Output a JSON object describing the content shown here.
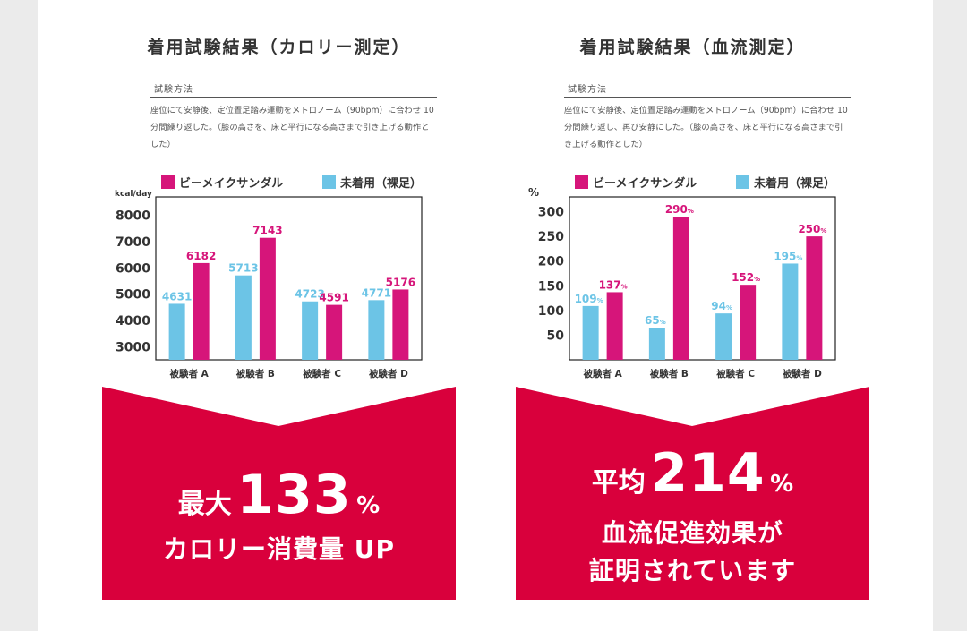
{
  "colors": {
    "magenta": "#d6157a",
    "cyan": "#6cc4e6",
    "banner_red": "#d9003c"
  },
  "left": {
    "heading": "着用試験結果（カロリー測定）",
    "method_label": "試験方法",
    "method_text": "座位にて安静後、定位置足踏み運動をメトロノーム（90bpm）に合わせ 10 分間繰り返した。（膝の高さを、床と平行になる高さまで引き上げる動作とした）",
    "banner": {
      "prefix": "最大",
      "number": "133",
      "unit": "%",
      "line2": "カロリー消費量 UP"
    }
  },
  "right": {
    "heading": "着用試験結果（血流測定）",
    "method_label": "試験方法",
    "method_text": "座位にて安静後、定位置足踏み運動をメトロノーム（90bpm）に合わせ 10 分間繰り返し、再び安静にした。（膝の高さを、床と平行になる高さまで引き上げる動作とした）",
    "banner": {
      "prefix": "平均",
      "number": "214",
      "unit": "%",
      "line2": "血流促進効果が",
      "line3": "証明されています"
    }
  },
  "chart_data": [
    {
      "type": "bar",
      "ylabel": "kcal/day",
      "ylim": [
        2500,
        8700
      ],
      "yticks": [
        3000,
        4000,
        5000,
        6000,
        7000,
        8000
      ],
      "categories": [
        "被験者 A",
        "被験者 B",
        "被験者 C",
        "被験者 D"
      ],
      "label_suffix": "",
      "series": [
        {
          "name": "未着用（裸足）",
          "color": "#6cc4e6",
          "values": [
            4631,
            5713,
            4723,
            4771
          ]
        },
        {
          "name": "ビーメイクサンダル",
          "color": "#d6157a",
          "values": [
            6182,
            7143,
            4591,
            5176
          ]
        }
      ],
      "legend": [
        "ビーメイクサンダル",
        "未着用（裸足）"
      ],
      "legend_placement": "top",
      "grid": false
    },
    {
      "type": "bar",
      "ylabel": "%",
      "ylim": [
        0,
        330
      ],
      "yticks": [
        50,
        100,
        150,
        200,
        250,
        300
      ],
      "categories": [
        "被験者 A",
        "被験者 B",
        "被験者 C",
        "被験者 D"
      ],
      "label_suffix": "%",
      "series": [
        {
          "name": "未着用（裸足）",
          "color": "#6cc4e6",
          "values": [
            109,
            65,
            94,
            195
          ]
        },
        {
          "name": "ビーメイクサンダル",
          "color": "#d6157a",
          "values": [
            137,
            290,
            152,
            250
          ]
        }
      ],
      "legend": [
        "ビーメイクサンダル",
        "未着用（裸足）"
      ],
      "legend_placement": "top",
      "grid": false
    }
  ]
}
